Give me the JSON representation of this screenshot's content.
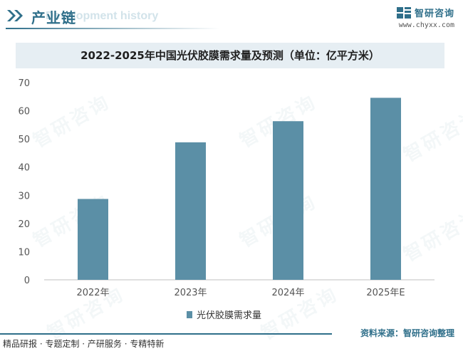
{
  "header": {
    "title": "产业链",
    "ghost_text": "Development history",
    "icon": "double-chevron-icon"
  },
  "brand": {
    "name": "智研咨询",
    "url": "www.chyxx.com",
    "logo": "zhiyan-logo-icon"
  },
  "watermark_text": "智研咨询",
  "chart_data": {
    "type": "bar",
    "title": "2022-2025年中国光伏胶膜需求量及预测（单位：亿平方米）",
    "categories": [
      "2022年",
      "2023年",
      "2024年",
      "2025年E"
    ],
    "series": [
      {
        "name": "光伏胶膜需求量",
        "values": [
          28.7,
          48.8,
          56.3,
          64.6
        ],
        "color": "#5b8fa6"
      }
    ],
    "ylim": [
      0,
      70
    ],
    "yticks": [
      0,
      10,
      20,
      30,
      40,
      50,
      60,
      70
    ],
    "grid": false,
    "legend_position": "bottom"
  },
  "footer": {
    "left": "精品研报 · 专题定制 · 产研服务 · 专精特新",
    "right": "资料来源：智研咨询整理"
  }
}
